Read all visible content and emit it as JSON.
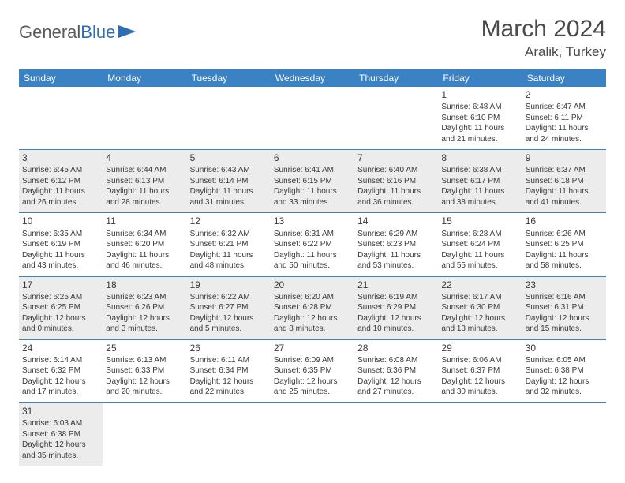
{
  "brand": {
    "prefix": "General",
    "suffix": "Blue"
  },
  "title": "March 2024",
  "location": "Aralik, Turkey",
  "colors": {
    "header_bg": "#3b82c4",
    "header_fg": "#ffffff",
    "row_alt_bg": "#ececec",
    "row_bg": "#ffffff",
    "text": "#3a3a3a",
    "title_color": "#4a4a4a",
    "logo_gray": "#5a5a5a",
    "logo_blue": "#2e6fb4",
    "border": "#3b82c4"
  },
  "typography": {
    "title_fontsize": 30,
    "location_fontsize": 17,
    "dayheader_fontsize": 12,
    "cell_fontsize": 10,
    "daynum_fontsize": 12,
    "logo_fontsize": 22
  },
  "dayHeaders": [
    "Sunday",
    "Monday",
    "Tuesday",
    "Wednesday",
    "Thursday",
    "Friday",
    "Saturday"
  ],
  "weeks": [
    {
      "alt": false,
      "days": [
        null,
        null,
        null,
        null,
        null,
        {
          "n": "1",
          "sunrise": "Sunrise: 6:48 AM",
          "sunset": "Sunset: 6:10 PM",
          "daylight": "Daylight: 11 hours and 21 minutes."
        },
        {
          "n": "2",
          "sunrise": "Sunrise: 6:47 AM",
          "sunset": "Sunset: 6:11 PM",
          "daylight": "Daylight: 11 hours and 24 minutes."
        }
      ]
    },
    {
      "alt": true,
      "days": [
        {
          "n": "3",
          "sunrise": "Sunrise: 6:45 AM",
          "sunset": "Sunset: 6:12 PM",
          "daylight": "Daylight: 11 hours and 26 minutes."
        },
        {
          "n": "4",
          "sunrise": "Sunrise: 6:44 AM",
          "sunset": "Sunset: 6:13 PM",
          "daylight": "Daylight: 11 hours and 28 minutes."
        },
        {
          "n": "5",
          "sunrise": "Sunrise: 6:43 AM",
          "sunset": "Sunset: 6:14 PM",
          "daylight": "Daylight: 11 hours and 31 minutes."
        },
        {
          "n": "6",
          "sunrise": "Sunrise: 6:41 AM",
          "sunset": "Sunset: 6:15 PM",
          "daylight": "Daylight: 11 hours and 33 minutes."
        },
        {
          "n": "7",
          "sunrise": "Sunrise: 6:40 AM",
          "sunset": "Sunset: 6:16 PM",
          "daylight": "Daylight: 11 hours and 36 minutes."
        },
        {
          "n": "8",
          "sunrise": "Sunrise: 6:38 AM",
          "sunset": "Sunset: 6:17 PM",
          "daylight": "Daylight: 11 hours and 38 minutes."
        },
        {
          "n": "9",
          "sunrise": "Sunrise: 6:37 AM",
          "sunset": "Sunset: 6:18 PM",
          "daylight": "Daylight: 11 hours and 41 minutes."
        }
      ]
    },
    {
      "alt": false,
      "days": [
        {
          "n": "10",
          "sunrise": "Sunrise: 6:35 AM",
          "sunset": "Sunset: 6:19 PM",
          "daylight": "Daylight: 11 hours and 43 minutes."
        },
        {
          "n": "11",
          "sunrise": "Sunrise: 6:34 AM",
          "sunset": "Sunset: 6:20 PM",
          "daylight": "Daylight: 11 hours and 46 minutes."
        },
        {
          "n": "12",
          "sunrise": "Sunrise: 6:32 AM",
          "sunset": "Sunset: 6:21 PM",
          "daylight": "Daylight: 11 hours and 48 minutes."
        },
        {
          "n": "13",
          "sunrise": "Sunrise: 6:31 AM",
          "sunset": "Sunset: 6:22 PM",
          "daylight": "Daylight: 11 hours and 50 minutes."
        },
        {
          "n": "14",
          "sunrise": "Sunrise: 6:29 AM",
          "sunset": "Sunset: 6:23 PM",
          "daylight": "Daylight: 11 hours and 53 minutes."
        },
        {
          "n": "15",
          "sunrise": "Sunrise: 6:28 AM",
          "sunset": "Sunset: 6:24 PM",
          "daylight": "Daylight: 11 hours and 55 minutes."
        },
        {
          "n": "16",
          "sunrise": "Sunrise: 6:26 AM",
          "sunset": "Sunset: 6:25 PM",
          "daylight": "Daylight: 11 hours and 58 minutes."
        }
      ]
    },
    {
      "alt": true,
      "days": [
        {
          "n": "17",
          "sunrise": "Sunrise: 6:25 AM",
          "sunset": "Sunset: 6:25 PM",
          "daylight": "Daylight: 12 hours and 0 minutes."
        },
        {
          "n": "18",
          "sunrise": "Sunrise: 6:23 AM",
          "sunset": "Sunset: 6:26 PM",
          "daylight": "Daylight: 12 hours and 3 minutes."
        },
        {
          "n": "19",
          "sunrise": "Sunrise: 6:22 AM",
          "sunset": "Sunset: 6:27 PM",
          "daylight": "Daylight: 12 hours and 5 minutes."
        },
        {
          "n": "20",
          "sunrise": "Sunrise: 6:20 AM",
          "sunset": "Sunset: 6:28 PM",
          "daylight": "Daylight: 12 hours and 8 minutes."
        },
        {
          "n": "21",
          "sunrise": "Sunrise: 6:19 AM",
          "sunset": "Sunset: 6:29 PM",
          "daylight": "Daylight: 12 hours and 10 minutes."
        },
        {
          "n": "22",
          "sunrise": "Sunrise: 6:17 AM",
          "sunset": "Sunset: 6:30 PM",
          "daylight": "Daylight: 12 hours and 13 minutes."
        },
        {
          "n": "23",
          "sunrise": "Sunrise: 6:16 AM",
          "sunset": "Sunset: 6:31 PM",
          "daylight": "Daylight: 12 hours and 15 minutes."
        }
      ]
    },
    {
      "alt": false,
      "days": [
        {
          "n": "24",
          "sunrise": "Sunrise: 6:14 AM",
          "sunset": "Sunset: 6:32 PM",
          "daylight": "Daylight: 12 hours and 17 minutes."
        },
        {
          "n": "25",
          "sunrise": "Sunrise: 6:13 AM",
          "sunset": "Sunset: 6:33 PM",
          "daylight": "Daylight: 12 hours and 20 minutes."
        },
        {
          "n": "26",
          "sunrise": "Sunrise: 6:11 AM",
          "sunset": "Sunset: 6:34 PM",
          "daylight": "Daylight: 12 hours and 22 minutes."
        },
        {
          "n": "27",
          "sunrise": "Sunrise: 6:09 AM",
          "sunset": "Sunset: 6:35 PM",
          "daylight": "Daylight: 12 hours and 25 minutes."
        },
        {
          "n": "28",
          "sunrise": "Sunrise: 6:08 AM",
          "sunset": "Sunset: 6:36 PM",
          "daylight": "Daylight: 12 hours and 27 minutes."
        },
        {
          "n": "29",
          "sunrise": "Sunrise: 6:06 AM",
          "sunset": "Sunset: 6:37 PM",
          "daylight": "Daylight: 12 hours and 30 minutes."
        },
        {
          "n": "30",
          "sunrise": "Sunrise: 6:05 AM",
          "sunset": "Sunset: 6:38 PM",
          "daylight": "Daylight: 12 hours and 32 minutes."
        }
      ]
    },
    {
      "alt": true,
      "days": [
        {
          "n": "31",
          "sunrise": "Sunrise: 6:03 AM",
          "sunset": "Sunset: 6:38 PM",
          "daylight": "Daylight: 12 hours and 35 minutes."
        },
        null,
        null,
        null,
        null,
        null,
        null
      ]
    }
  ]
}
